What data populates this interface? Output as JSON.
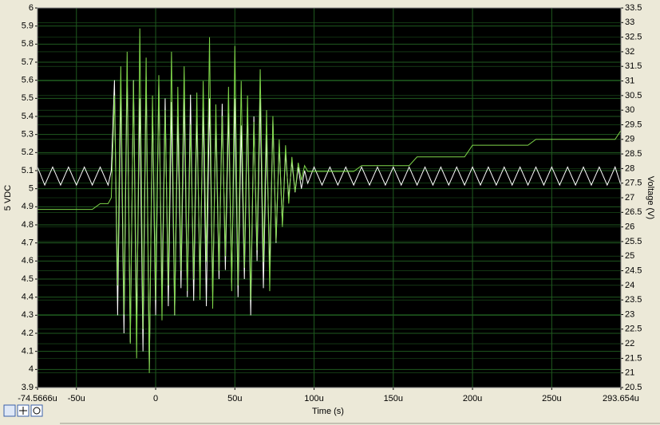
{
  "chart_data": {
    "type": "line",
    "xlabel": "Time (s)",
    "ylabel": "5 VDC",
    "y2label": "Voltage (V)",
    "background": "#000000",
    "grid": true,
    "grid_color": "#1f5a1f",
    "xlim": [
      -74.5666,
      293.654
    ],
    "xticks": [
      {
        "value": -74.5666,
        "label": "-74.5666u"
      },
      {
        "value": -50,
        "label": "-50u"
      },
      0,
      {
        "value": 50,
        "label": "50u"
      },
      {
        "value": 100,
        "label": "100u"
      },
      {
        "value": 150,
        "label": "150u"
      },
      {
        "value": 200,
        "label": "200u"
      },
      {
        "value": 250,
        "label": "250u"
      },
      {
        "value": 293.654,
        "label": "293.654u"
      }
    ],
    "ylim": [
      3.9,
      6
    ],
    "yticks": [
      3.9,
      4,
      4.1,
      4.2,
      4.3,
      4.4,
      4.5,
      4.6,
      4.7,
      4.8,
      4.9,
      5,
      5.1,
      5.2,
      5.3,
      5.4,
      5.5,
      5.6,
      5.7,
      5.8,
      5.9,
      6
    ],
    "y2lim": [
      20.5,
      33.5
    ],
    "y2ticks": [
      20.5,
      21,
      21.5,
      22,
      22.5,
      23,
      23.5,
      24,
      24.5,
      25,
      25.5,
      26,
      26.5,
      27,
      27.5,
      28,
      28.5,
      29,
      29.5,
      30,
      30.5,
      31,
      31.5,
      32,
      32.5,
      33,
      33.5
    ],
    "x": [
      -74.5666,
      -70,
      -65,
      -60,
      -55,
      -50,
      -45,
      -40,
      -35,
      -30,
      -28,
      -26,
      -24,
      -22,
      -20,
      -18,
      -16,
      -14,
      -12,
      -10,
      -8,
      -6,
      -4,
      -2,
      0,
      2,
      4,
      6,
      8,
      10,
      12,
      14,
      16,
      18,
      20,
      22,
      24,
      26,
      28,
      30,
      32,
      34,
      36,
      38,
      40,
      42,
      44,
      46,
      48,
      50,
      52,
      54,
      56,
      58,
      60,
      62,
      64,
      66,
      68,
      70,
      72,
      74,
      76,
      78,
      80,
      82,
      84,
      86,
      88,
      90,
      92,
      94,
      96,
      100,
      105,
      110,
      115,
      120,
      125,
      130,
      135,
      140,
      145,
      150,
      155,
      160,
      165,
      170,
      175,
      180,
      185,
      190,
      195,
      200,
      205,
      210,
      215,
      220,
      225,
      230,
      235,
      240,
      245,
      250,
      255,
      260,
      265,
      270,
      275,
      280,
      285,
      290,
      293.654
    ],
    "series": [
      {
        "color": "#ffffff",
        "axis": "y",
        "values": [
          5.12,
          5.02,
          5.12,
          5.02,
          5.12,
          5.02,
          5.12,
          5.02,
          5.12,
          5.02,
          5.1,
          5.6,
          4.3,
          5.55,
          4.2,
          5.65,
          4.15,
          5.6,
          4.25,
          5.5,
          4.1,
          5.62,
          4.0,
          5.45,
          4.3,
          5.58,
          4.4,
          5.5,
          4.35,
          5.48,
          4.3,
          5.4,
          4.45,
          5.5,
          4.4,
          5.52,
          4.38,
          5.4,
          4.5,
          5.45,
          4.35,
          5.5,
          4.42,
          5.38,
          4.5,
          5.47,
          4.55,
          5.42,
          4.48,
          5.5,
          4.4,
          5.35,
          4.5,
          5.45,
          4.3,
          5.4,
          4.6,
          5.5,
          4.45,
          5.3,
          4.55,
          5.38,
          4.7,
          5.25,
          4.8,
          5.2,
          4.95,
          5.15,
          4.98,
          5.12,
          5.0,
          5.1,
          5.03,
          5.12,
          5.02,
          5.12,
          5.02,
          5.12,
          5.02,
          5.12,
          5.02,
          5.12,
          5.02,
          5.12,
          5.02,
          5.12,
          5.02,
          5.12,
          5.02,
          5.12,
          5.02,
          5.12,
          5.02,
          5.12,
          5.02,
          5.12,
          5.02,
          5.12,
          5.02,
          5.12,
          5.02,
          5.12,
          5.02,
          5.12,
          5.02,
          5.12,
          5.02,
          5.12,
          5.02,
          5.12,
          5.02,
          5.12,
          5.02
        ]
      },
      {
        "color": "#7fd64a",
        "axis": "y2",
        "values": [
          26.6,
          26.6,
          26.6,
          26.6,
          26.6,
          26.6,
          26.6,
          26.6,
          26.8,
          26.8,
          27,
          30.5,
          24,
          31.5,
          23,
          32,
          22,
          31,
          21.5,
          32.8,
          22.5,
          31.8,
          21,
          30.5,
          23.5,
          31.2,
          22.8,
          30,
          24,
          32,
          23,
          30.8,
          24.5,
          31.5,
          23.8,
          29.5,
          24.2,
          30.6,
          23.5,
          31,
          24.8,
          32.5,
          23.2,
          30.2,
          24.5,
          29.8,
          25,
          30.8,
          23.8,
          32.2,
          24,
          31,
          24.6,
          30.5,
          23.5,
          29.6,
          25.2,
          31.4,
          24.8,
          30,
          23.8,
          29.8,
          25.5,
          29,
          26,
          28.8,
          26.8,
          28.4,
          27.2,
          28.2,
          27.6,
          28.1,
          27.9,
          27.9,
          27.9,
          27.9,
          27.9,
          27.9,
          27.9,
          28.1,
          28.1,
          28.1,
          28.1,
          28.1,
          28.1,
          28.1,
          28.4,
          28.4,
          28.4,
          28.4,
          28.4,
          28.4,
          28.4,
          28.8,
          28.8,
          28.8,
          28.8,
          28.8,
          28.8,
          28.8,
          28.8,
          29.0,
          29.0,
          29.0,
          29.0,
          29.0,
          29.0,
          29.0,
          29.0,
          29.0,
          29.0,
          29.0,
          29.3
        ]
      }
    ]
  }
}
